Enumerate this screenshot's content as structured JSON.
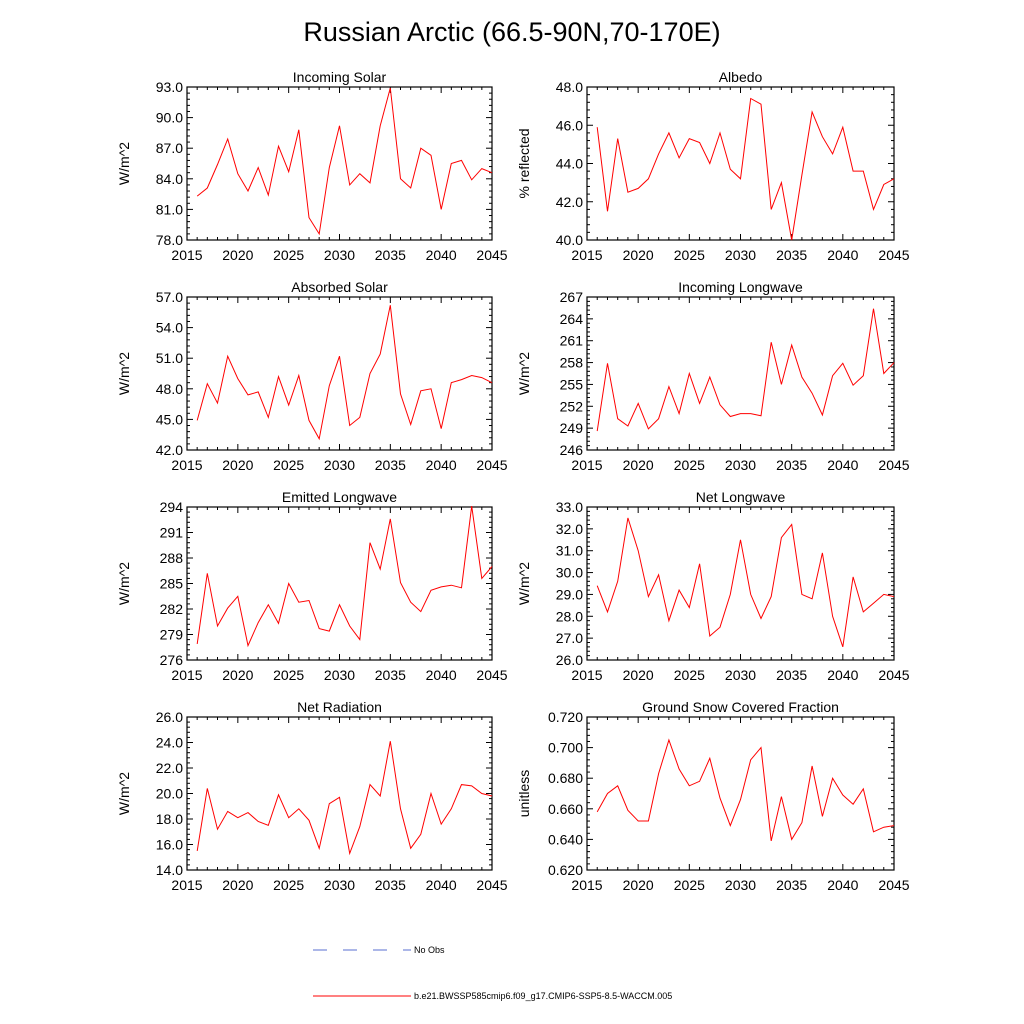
{
  "figure": {
    "title": "Russian Arctic (66.5-90N,70-170E)"
  },
  "legend": {
    "entries": [
      {
        "label": "No Obs",
        "color": "#5a6fd0",
        "style": "dashed"
      },
      {
        "label": "b.e21.BWSSP585cmip6.f09_g17.CMIP6-SSP5-8.5-WACCM.005",
        "color": "#ff0000",
        "style": "solid"
      }
    ]
  },
  "colors": {
    "series": "#ff0000",
    "obs": "#5a6fd0",
    "axis": "#000000"
  },
  "chart_data": [
    {
      "type": "line",
      "title": "Incoming Solar",
      "xlabel": "",
      "ylabel": "W/m^2",
      "xlim": [
        2015,
        2045
      ],
      "ylim": [
        78,
        93
      ],
      "xticks": [
        "2015",
        "2020",
        "2025",
        "2030",
        "2035",
        "2040",
        "2045"
      ],
      "yticks": [
        "78.0",
        "81.0",
        "84.0",
        "87.0",
        "90.0",
        "93.0"
      ],
      "x": [
        2016,
        2017,
        2018,
        2019,
        2020,
        2021,
        2022,
        2023,
        2024,
        2025,
        2026,
        2027,
        2028,
        2029,
        2030,
        2031,
        2032,
        2033,
        2034,
        2035,
        2036,
        2037,
        2038,
        2039,
        2040,
        2041,
        2042,
        2043,
        2044,
        2045
      ],
      "series": [
        {
          "values": [
            82.3,
            83.1,
            85.4,
            87.9,
            84.5,
            82.8,
            85.1,
            82.4,
            87.2,
            84.7,
            88.8,
            80.2,
            78.6,
            85.1,
            89.2,
            83.4,
            84.5,
            83.6,
            89.2,
            92.9,
            84.0,
            83.1,
            87.0,
            86.3,
            81.0,
            85.5,
            85.8,
            83.9,
            85.0,
            84.6
          ]
        }
      ],
      "grid": false
    },
    {
      "type": "line",
      "title": "Albedo",
      "xlabel": "",
      "ylabel": "% reflected",
      "xlim": [
        2015,
        2045
      ],
      "ylim": [
        40,
        48
      ],
      "xticks": [
        "2015",
        "2020",
        "2025",
        "2030",
        "2035",
        "2040",
        "2045"
      ],
      "yticks": [
        "40.0",
        "42.0",
        "44.0",
        "46.0",
        "48.0"
      ],
      "x": [
        2016,
        2017,
        2018,
        2019,
        2020,
        2021,
        2022,
        2023,
        2024,
        2025,
        2026,
        2027,
        2028,
        2029,
        2030,
        2031,
        2032,
        2033,
        2034,
        2035,
        2036,
        2037,
        2038,
        2039,
        2040,
        2041,
        2042,
        2043,
        2044,
        2045
      ],
      "series": [
        {
          "values": [
            45.9,
            41.5,
            45.3,
            42.5,
            42.7,
            43.2,
            44.5,
            45.6,
            44.3,
            45.3,
            45.1,
            44.0,
            45.6,
            43.7,
            43.2,
            47.4,
            47.1,
            41.6,
            43.0,
            40.0,
            43.4,
            46.7,
            45.4,
            44.5,
            45.9,
            43.6,
            43.6,
            41.6,
            42.9,
            43.2
          ]
        }
      ],
      "grid": false
    },
    {
      "type": "line",
      "title": "Absorbed Solar",
      "xlabel": "",
      "ylabel": "W/m^2",
      "xlim": [
        2015,
        2045
      ],
      "ylim": [
        42,
        57
      ],
      "xticks": [
        "2015",
        "2020",
        "2025",
        "2030",
        "2035",
        "2040",
        "2045"
      ],
      "yticks": [
        "42.0",
        "45.0",
        "48.0",
        "51.0",
        "54.0",
        "57.0"
      ],
      "x": [
        2016,
        2017,
        2018,
        2019,
        2020,
        2021,
        2022,
        2023,
        2024,
        2025,
        2026,
        2027,
        2028,
        2029,
        2030,
        2031,
        2032,
        2033,
        2034,
        2035,
        2036,
        2037,
        2038,
        2039,
        2040,
        2041,
        2042,
        2043,
        2044,
        2045
      ],
      "series": [
        {
          "values": [
            44.9,
            48.5,
            46.6,
            51.2,
            49.0,
            47.4,
            47.7,
            45.2,
            49.2,
            46.4,
            49.3,
            44.9,
            43.1,
            48.3,
            51.2,
            44.4,
            45.2,
            49.5,
            51.4,
            56.2,
            47.5,
            44.5,
            47.8,
            48.0,
            44.1,
            48.6,
            48.9,
            49.3,
            49.1,
            48.6
          ]
        }
      ],
      "grid": false
    },
    {
      "type": "line",
      "title": "Incoming Longwave",
      "xlabel": "",
      "ylabel": "W/m^2",
      "xlim": [
        2015,
        2045
      ],
      "ylim": [
        246,
        267
      ],
      "xticks": [
        "2015",
        "2020",
        "2025",
        "2030",
        "2035",
        "2040",
        "2045"
      ],
      "yticks": [
        "246",
        "249",
        "252",
        "255",
        "258",
        "261",
        "264",
        "267"
      ],
      "x": [
        2016,
        2017,
        2018,
        2019,
        2020,
        2021,
        2022,
        2023,
        2024,
        2025,
        2026,
        2027,
        2028,
        2029,
        2030,
        2031,
        2032,
        2033,
        2034,
        2035,
        2036,
        2037,
        2038,
        2039,
        2040,
        2041,
        2042,
        2043,
        2044,
        2045
      ],
      "series": [
        {
          "values": [
            248.6,
            257.9,
            250.3,
            249.3,
            252.4,
            248.9,
            250.3,
            254.7,
            251.0,
            256.5,
            252.4,
            256.0,
            252.2,
            250.6,
            251.0,
            251.0,
            250.7,
            260.8,
            255.0,
            260.4,
            256.0,
            253.8,
            250.8,
            256.2,
            257.9,
            254.9,
            256.2,
            265.4,
            256.5,
            258.0
          ]
        }
      ],
      "grid": false
    },
    {
      "type": "line",
      "title": "Emitted Longwave",
      "xlabel": "",
      "ylabel": "W/m^2",
      "xlim": [
        2015,
        2045
      ],
      "ylim": [
        276,
        294
      ],
      "xticks": [
        "2015",
        "2020",
        "2025",
        "2030",
        "2035",
        "2040",
        "2045"
      ],
      "yticks": [
        "276",
        "279",
        "282",
        "285",
        "288",
        "291",
        "294"
      ],
      "x": [
        2016,
        2017,
        2018,
        2019,
        2020,
        2021,
        2022,
        2023,
        2024,
        2025,
        2026,
        2027,
        2028,
        2029,
        2030,
        2031,
        2032,
        2033,
        2034,
        2035,
        2036,
        2037,
        2038,
        2039,
        2040,
        2041,
        2042,
        2043,
        2044,
        2045
      ],
      "series": [
        {
          "values": [
            277.9,
            286.2,
            280.0,
            282.1,
            283.5,
            277.7,
            280.4,
            282.5,
            280.3,
            285.0,
            282.8,
            283.0,
            279.7,
            279.4,
            282.5,
            280.0,
            278.4,
            289.8,
            286.7,
            292.6,
            285.1,
            282.8,
            281.7,
            284.2,
            284.6,
            284.8,
            284.5,
            294.1,
            285.6,
            287.0
          ]
        }
      ],
      "grid": false
    },
    {
      "type": "line",
      "title": "Net Longwave",
      "xlabel": "",
      "ylabel": "W/m^2",
      "xlim": [
        2015,
        2045
      ],
      "ylim": [
        26,
        33
      ],
      "xticks": [
        "2015",
        "2020",
        "2025",
        "2030",
        "2035",
        "2040",
        "2045"
      ],
      "yticks": [
        "26.0",
        "27.0",
        "28.0",
        "29.0",
        "30.0",
        "31.0",
        "32.0",
        "33.0"
      ],
      "x": [
        2016,
        2017,
        2018,
        2019,
        2020,
        2021,
        2022,
        2023,
        2024,
        2025,
        2026,
        2027,
        2028,
        2029,
        2030,
        2031,
        2032,
        2033,
        2034,
        2035,
        2036,
        2037,
        2038,
        2039,
        2040,
        2041,
        2042,
        2043,
        2044,
        2045
      ],
      "series": [
        {
          "values": [
            29.4,
            28.2,
            29.6,
            32.5,
            31.0,
            28.9,
            29.9,
            27.8,
            29.2,
            28.4,
            30.4,
            27.1,
            27.5,
            29.0,
            31.5,
            29.0,
            27.9,
            28.9,
            31.6,
            32.2,
            29.0,
            28.8,
            30.9,
            28.0,
            26.6,
            29.8,
            28.2,
            28.6,
            29.0,
            28.9
          ]
        }
      ],
      "grid": false
    },
    {
      "type": "line",
      "title": "Net Radiation",
      "xlabel": "",
      "ylabel": "W/m^2",
      "xlim": [
        2015,
        2045
      ],
      "ylim": [
        14,
        26
      ],
      "xticks": [
        "2015",
        "2020",
        "2025",
        "2030",
        "2035",
        "2040",
        "2045"
      ],
      "yticks": [
        "14.0",
        "16.0",
        "18.0",
        "20.0",
        "22.0",
        "24.0",
        "26.0"
      ],
      "x": [
        2016,
        2017,
        2018,
        2019,
        2020,
        2021,
        2022,
        2023,
        2024,
        2025,
        2026,
        2027,
        2028,
        2029,
        2030,
        2031,
        2032,
        2033,
        2034,
        2035,
        2036,
        2037,
        2038,
        2039,
        2040,
        2041,
        2042,
        2043,
        2044,
        2045
      ],
      "series": [
        {
          "values": [
            15.5,
            20.4,
            17.2,
            18.6,
            18.1,
            18.5,
            17.8,
            17.5,
            19.9,
            18.1,
            18.8,
            17.9,
            15.7,
            19.2,
            19.7,
            15.3,
            17.4,
            20.7,
            19.8,
            24.1,
            18.8,
            15.7,
            16.8,
            20.0,
            17.6,
            18.8,
            20.7,
            20.6,
            20.0,
            19.8
          ]
        }
      ],
      "grid": false
    },
    {
      "type": "line",
      "title": "Ground Snow Covered Fraction",
      "xlabel": "",
      "ylabel": "unitless",
      "xlim": [
        2015,
        2045
      ],
      "ylim": [
        0.62,
        0.72
      ],
      "xticks": [
        "2015",
        "2020",
        "2025",
        "2030",
        "2035",
        "2040",
        "2045"
      ],
      "yticks": [
        "0.620",
        "0.640",
        "0.660",
        "0.680",
        "0.700",
        "0.720"
      ],
      "x": [
        2016,
        2017,
        2018,
        2019,
        2020,
        2021,
        2022,
        2023,
        2024,
        2025,
        2026,
        2027,
        2028,
        2029,
        2030,
        2031,
        2032,
        2033,
        2034,
        2035,
        2036,
        2037,
        2038,
        2039,
        2040,
        2041,
        2042,
        2043,
        2044,
        2045
      ],
      "series": [
        {
          "values": [
            0.658,
            0.67,
            0.675,
            0.659,
            0.652,
            0.652,
            0.683,
            0.705,
            0.686,
            0.675,
            0.678,
            0.693,
            0.667,
            0.649,
            0.666,
            0.692,
            0.7,
            0.639,
            0.668,
            0.64,
            0.651,
            0.688,
            0.655,
            0.68,
            0.669,
            0.663,
            0.673,
            0.645,
            0.648,
            0.649
          ]
        }
      ],
      "grid": false
    }
  ]
}
